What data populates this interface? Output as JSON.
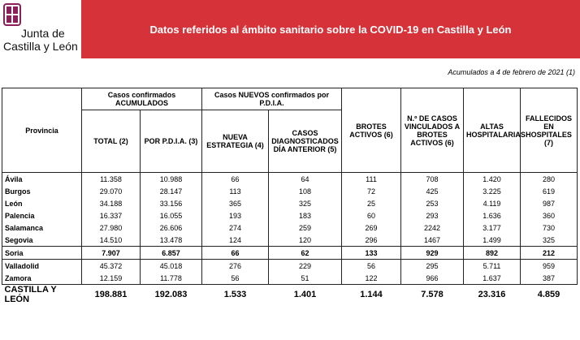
{
  "logo": {
    "line1": "Junta de",
    "line2": "Castilla y León"
  },
  "header": {
    "title": "Datos referidos al ámbito sanitario sobre la COVID-19 en Castilla y León"
  },
  "note": "Acumulados a 4 de febrero de 2021 (1)",
  "table": {
    "groups": [
      "Casos confirmados ACUMULADOS",
      "Casos NUEVOS confirmados por P.D.I.A."
    ],
    "columns": [
      "Provincia",
      "TOTAL (2)",
      "POR P.D.I.A. (3)",
      "NUEVA ESTRATEGIA (4)",
      "CASOS DIAGNOSTICADOS DÍA ANTERIOR (5)",
      "BROTES ACTIVOS (6)",
      "N.º DE CASOS VINCULADOS A BROTES ACTIVOS (6)",
      "ALTAS HOSPITALARIAS",
      "FALLECIDOS EN HOSPITALES (7)"
    ],
    "rows": [
      [
        "Ávila",
        "11.358",
        "10.988",
        "66",
        "64",
        "111",
        "708",
        "1.420",
        "280"
      ],
      [
        "Burgos",
        "29.070",
        "28.147",
        "113",
        "108",
        "72",
        "425",
        "3.225",
        "619"
      ],
      [
        "León",
        "34.188",
        "33.156",
        "365",
        "325",
        "25",
        "253",
        "4.119",
        "987"
      ],
      [
        "Palencia",
        "16.337",
        "16.055",
        "193",
        "183",
        "60",
        "293",
        "1.636",
        "360"
      ],
      [
        "Salamanca",
        "27.980",
        "26.606",
        "274",
        "259",
        "269",
        "2242",
        "3.177",
        "730"
      ],
      [
        "Segovia",
        "14.510",
        "13.478",
        "124",
        "120",
        "296",
        "1467",
        "1.499",
        "325"
      ],
      [
        "Soria",
        "7.907",
        "6.857",
        "66",
        "62",
        "133",
        "929",
        "892",
        "212"
      ],
      [
        "Valladolid",
        "45.372",
        "45.018",
        "276",
        "229",
        "56",
        "295",
        "5.711",
        "959"
      ],
      [
        "Zamora",
        "12.159",
        "11.778",
        "56",
        "51",
        "122",
        "966",
        "1.637",
        "387"
      ]
    ],
    "total": [
      "CASTILLA Y LEÓN",
      "198.881",
      "192.083",
      "1.533",
      "1.401",
      "1.144",
      "7.578",
      "23.316",
      "4.859"
    ]
  }
}
